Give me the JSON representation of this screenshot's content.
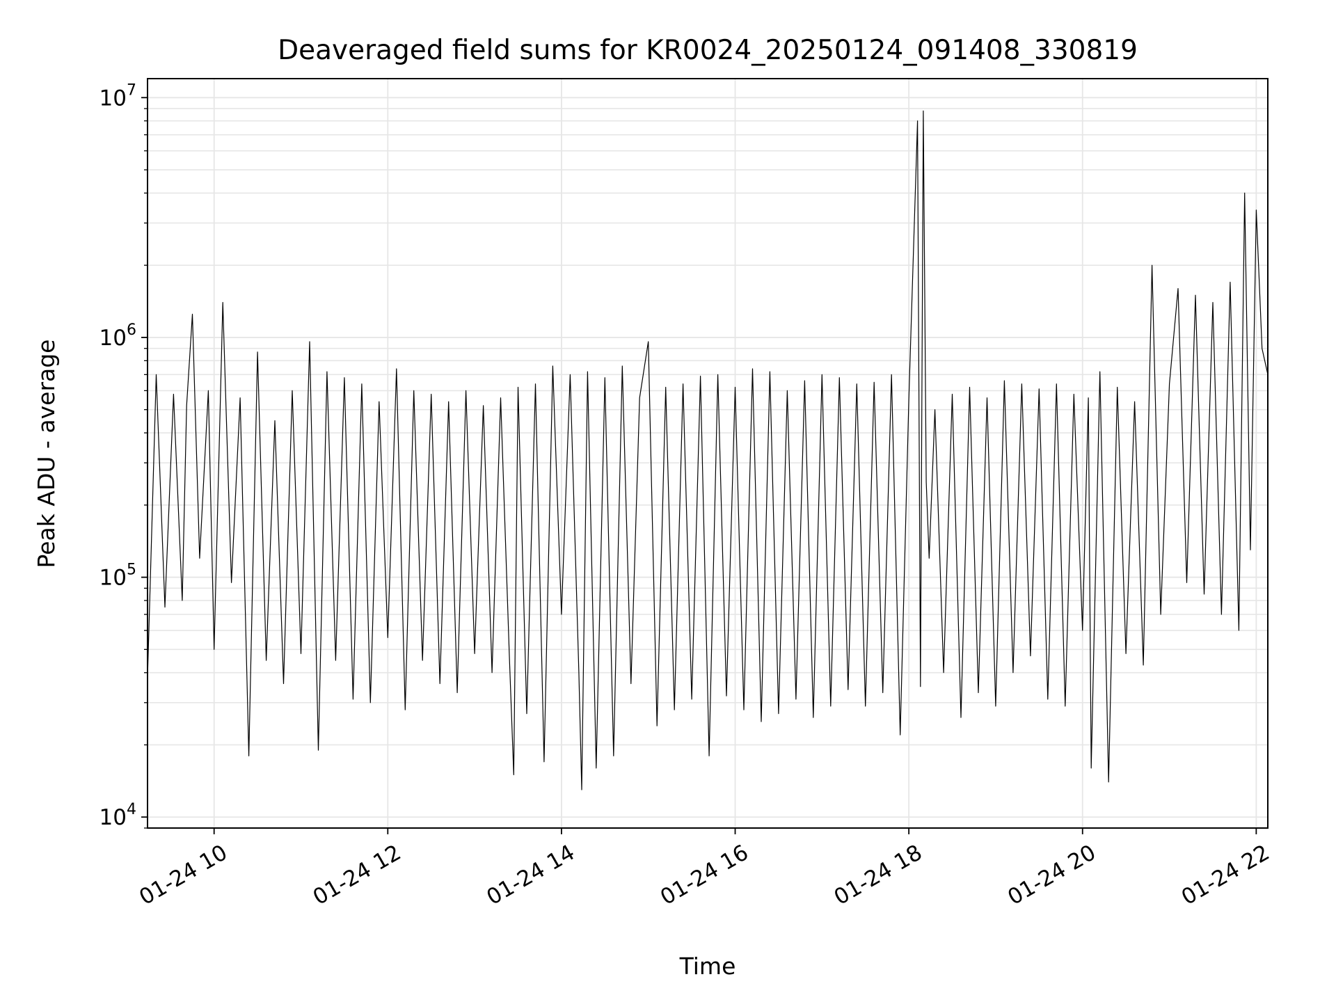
{
  "chart_data": {
    "type": "line",
    "title": "Deaveraged field sums for KR0024_20250124_091408_330819",
    "xlabel": "Time",
    "ylabel": "Peak ADU - average",
    "x_is_time": true,
    "xlim": [
      "2025-01-24 09:14",
      "2025-01-24 22:08"
    ],
    "ylim": [
      9000,
      12000000
    ],
    "yscale": "log",
    "grid": true,
    "line_color": "#000000",
    "grid_color": "#e6e6e6",
    "x_ticks": [
      {
        "value": "2025-01-24 10:00",
        "label": "01-24 10"
      },
      {
        "value": "2025-01-24 12:00",
        "label": "01-24 12"
      },
      {
        "value": "2025-01-24 14:00",
        "label": "01-24 14"
      },
      {
        "value": "2025-01-24 16:00",
        "label": "01-24 16"
      },
      {
        "value": "2025-01-24 18:00",
        "label": "01-24 18"
      },
      {
        "value": "2025-01-24 20:00",
        "label": "01-24 20"
      },
      {
        "value": "2025-01-24 22:00",
        "label": "01-24 22"
      }
    ],
    "y_ticks": [
      {
        "value": 10000,
        "base": "10",
        "exp": "4"
      },
      {
        "value": 100000,
        "base": "10",
        "exp": "5"
      },
      {
        "value": 1000000,
        "base": "10",
        "exp": "6"
      },
      {
        "value": 10000000,
        "base": "10",
        "exp": "7"
      }
    ],
    "series": [
      {
        "x": [
          "2025-01-24 09:14",
          "2025-01-24 09:20",
          "2025-01-24 09:26",
          "2025-01-24 09:32",
          "2025-01-24 09:38",
          "2025-01-24 09:41",
          "2025-01-24 09:45",
          "2025-01-24 09:50",
          "2025-01-24 09:56",
          "2025-01-24 10:00",
          "2025-01-24 10:06",
          "2025-01-24 10:12",
          "2025-01-24 10:18",
          "2025-01-24 10:24",
          "2025-01-24 10:30",
          "2025-01-24 10:36",
          "2025-01-24 10:42",
          "2025-01-24 10:48",
          "2025-01-24 10:54",
          "2025-01-24 11:00",
          "2025-01-24 11:06",
          "2025-01-24 11:12",
          "2025-01-24 11:18",
          "2025-01-24 11:24",
          "2025-01-24 11:30",
          "2025-01-24 11:36",
          "2025-01-24 11:42",
          "2025-01-24 11:48",
          "2025-01-24 11:54",
          "2025-01-24 12:00",
          "2025-01-24 12:06",
          "2025-01-24 12:12",
          "2025-01-24 12:18",
          "2025-01-24 12:24",
          "2025-01-24 12:30",
          "2025-01-24 12:36",
          "2025-01-24 12:42",
          "2025-01-24 12:48",
          "2025-01-24 12:54",
          "2025-01-24 13:00",
          "2025-01-24 13:06",
          "2025-01-24 13:12",
          "2025-01-24 13:18",
          "2025-01-24 13:24",
          "2025-01-24 13:27",
          "2025-01-24 13:30",
          "2025-01-24 13:36",
          "2025-01-24 13:42",
          "2025-01-24 13:48",
          "2025-01-24 13:54",
          "2025-01-24 14:00",
          "2025-01-24 14:06",
          "2025-01-24 14:12",
          "2025-01-24 14:14",
          "2025-01-24 14:18",
          "2025-01-24 14:24",
          "2025-01-24 14:30",
          "2025-01-24 14:36",
          "2025-01-24 14:42",
          "2025-01-24 14:48",
          "2025-01-24 14:54",
          "2025-01-24 15:00",
          "2025-01-24 15:06",
          "2025-01-24 15:12",
          "2025-01-24 15:18",
          "2025-01-24 15:24",
          "2025-01-24 15:30",
          "2025-01-24 15:36",
          "2025-01-24 15:42",
          "2025-01-24 15:48",
          "2025-01-24 15:54",
          "2025-01-24 16:00",
          "2025-01-24 16:06",
          "2025-01-24 16:12",
          "2025-01-24 16:18",
          "2025-01-24 16:24",
          "2025-01-24 16:30",
          "2025-01-24 16:36",
          "2025-01-24 16:42",
          "2025-01-24 16:48",
          "2025-01-24 16:54",
          "2025-01-24 17:00",
          "2025-01-24 17:06",
          "2025-01-24 17:12",
          "2025-01-24 17:18",
          "2025-01-24 17:24",
          "2025-01-24 17:30",
          "2025-01-24 17:36",
          "2025-01-24 17:42",
          "2025-01-24 17:48",
          "2025-01-24 17:54",
          "2025-01-24 18:00",
          "2025-01-24 18:06",
          "2025-01-24 18:08",
          "2025-01-24 18:10",
          "2025-01-24 18:12",
          "2025-01-24 18:14",
          "2025-01-24 18:18",
          "2025-01-24 18:24",
          "2025-01-24 18:30",
          "2025-01-24 18:36",
          "2025-01-24 18:42",
          "2025-01-24 18:48",
          "2025-01-24 18:54",
          "2025-01-24 19:00",
          "2025-01-24 19:06",
          "2025-01-24 19:12",
          "2025-01-24 19:18",
          "2025-01-24 19:24",
          "2025-01-24 19:30",
          "2025-01-24 19:36",
          "2025-01-24 19:42",
          "2025-01-24 19:48",
          "2025-01-24 19:54",
          "2025-01-24 20:00",
          "2025-01-24 20:04",
          "2025-01-24 20:06",
          "2025-01-24 20:12",
          "2025-01-24 20:18",
          "2025-01-24 20:24",
          "2025-01-24 20:30",
          "2025-01-24 20:36",
          "2025-01-24 20:42",
          "2025-01-24 20:48",
          "2025-01-24 20:54",
          "2025-01-24 21:00",
          "2025-01-24 21:06",
          "2025-01-24 21:12",
          "2025-01-24 21:18",
          "2025-01-24 21:24",
          "2025-01-24 21:30",
          "2025-01-24 21:36",
          "2025-01-24 21:42",
          "2025-01-24 21:48",
          "2025-01-24 21:52",
          "2025-01-24 21:56",
          "2025-01-24 22:00",
          "2025-01-24 22:04",
          "2025-01-24 22:08"
        ],
        "y": [
          38000,
          700000,
          75000,
          580000,
          80000,
          520000,
          1250000,
          120000,
          600000,
          50000,
          1400000,
          95000,
          560000,
          18000,
          870000,
          45000,
          450000,
          36000,
          600000,
          48000,
          960000,
          19000,
          720000,
          45000,
          680000,
          31000,
          640000,
          30000,
          540000,
          56000,
          740000,
          28000,
          600000,
          45000,
          580000,
          36000,
          540000,
          33000,
          600000,
          48000,
          520000,
          40000,
          560000,
          47000,
          15000,
          620000,
          27000,
          640000,
          17000,
          760000,
          70000,
          700000,
          40000,
          13000,
          720000,
          16000,
          680000,
          18000,
          760000,
          36000,
          560000,
          960000,
          24000,
          620000,
          28000,
          640000,
          31000,
          690000,
          18000,
          700000,
          32000,
          620000,
          28000,
          740000,
          25000,
          720000,
          27000,
          600000,
          31000,
          660000,
          26000,
          700000,
          29000,
          680000,
          34000,
          640000,
          29000,
          650000,
          33000,
          700000,
          22000,
          550000,
          8000000,
          35000,
          8800000,
          250000,
          120000,
          500000,
          40000,
          580000,
          26000,
          620000,
          33000,
          560000,
          29000,
          660000,
          40000,
          640000,
          47000,
          610000,
          31000,
          640000,
          29000,
          580000,
          60000,
          560000,
          16000,
          720000,
          14000,
          620000,
          48000,
          540000,
          43000,
          2000000,
          70000,
          640000,
          1600000,
          95000,
          1500000,
          85000,
          1400000,
          70000,
          1700000,
          60000,
          4000000,
          130000,
          3400000,
          900000,
          700000
        ]
      }
    ]
  }
}
